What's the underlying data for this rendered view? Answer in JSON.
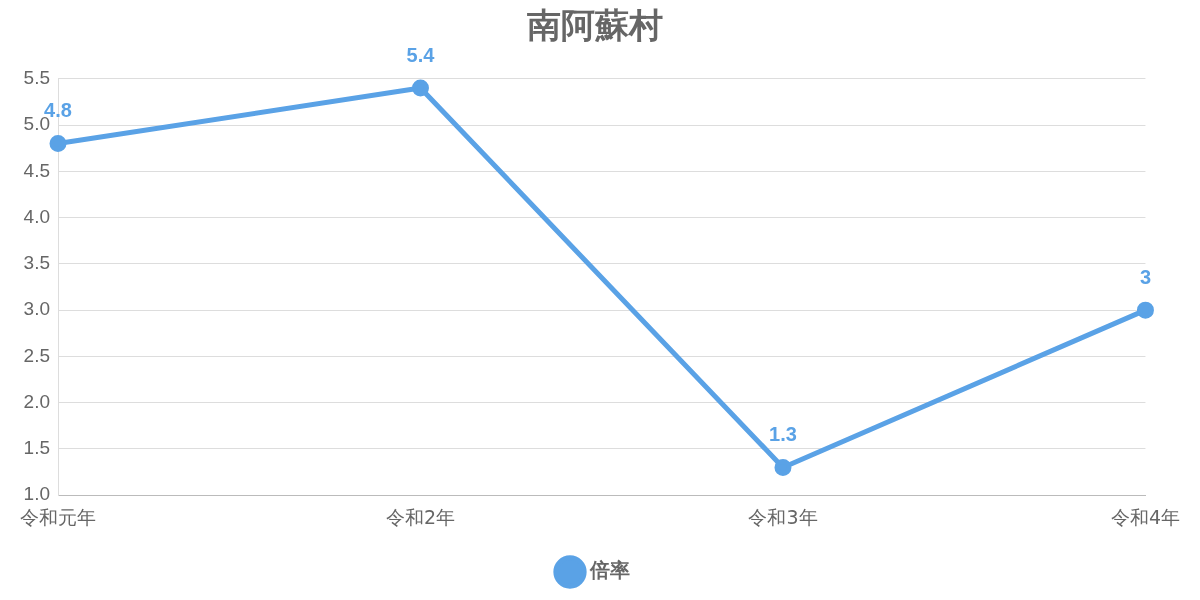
{
  "chart_data": {
    "type": "line",
    "title": "南阿蘇村",
    "categories": [
      "令和元年",
      "令和2年",
      "令和3年",
      "令和4年"
    ],
    "series": [
      {
        "name": "倍率",
        "color": "#5aa2e6",
        "values": [
          4.8,
          5.4,
          1.3,
          3
        ]
      }
    ],
    "ylim": [
      1,
      5.5
    ],
    "yticks": [
      {
        "value": 1,
        "label": "1.0"
      },
      1.5,
      {
        "value": 2,
        "label": "2.0"
      },
      2.5,
      {
        "value": 3,
        "label": "3.0"
      },
      3.5,
      {
        "value": 4,
        "label": "4.0"
      },
      4.5,
      {
        "value": 5,
        "label": "5.0"
      },
      5.5
    ],
    "grid": "y",
    "legend": "bottom",
    "marker": "circle",
    "line_style": "solid",
    "data_labels": true
  }
}
